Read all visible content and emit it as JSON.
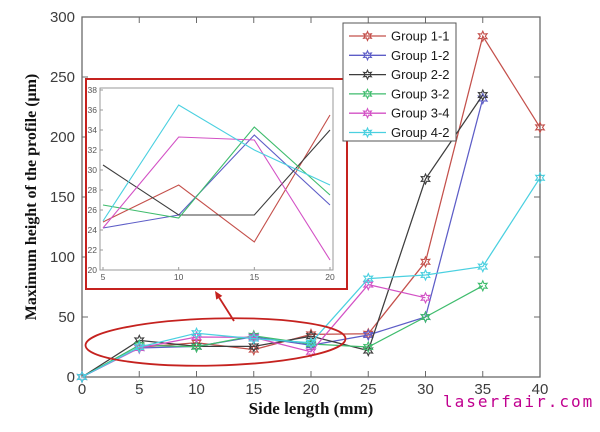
{
  "watermark": {
    "text": "laserfair.com",
    "color": "#c0008f"
  },
  "chart_data": {
    "type": "line",
    "title": "",
    "xlabel": "Side length (mm)",
    "ylabel": "Maximum height of the profile (μm)",
    "xlim": [
      0,
      40
    ],
    "ylim": [
      0,
      300
    ],
    "xticks": [
      0,
      5,
      10,
      15,
      20,
      25,
      30,
      35,
      40
    ],
    "yticks": [
      0,
      50,
      100,
      150,
      200,
      250,
      300
    ],
    "grid": false,
    "legend_position": "top-right",
    "marker": "hexagram",
    "x": [
      0,
      5,
      10,
      15,
      20,
      25,
      30,
      35,
      40
    ],
    "series": [
      {
        "name": "Group 1-1",
        "color": "#c4504b",
        "values": [
          0,
          24.8,
          28.5,
          22.8,
          35.5,
          36,
          96,
          284,
          208
        ]
      },
      {
        "name": "Group 1-2",
        "color": "#5d5dc7",
        "values": [
          0,
          24.2,
          25.5,
          33.5,
          26.5,
          35,
          50,
          232
        ]
      },
      {
        "name": "Group 2-2",
        "color": "#3d3d3d",
        "values": [
          0,
          30.5,
          25.5,
          25.5,
          34,
          22,
          165,
          235
        ]
      },
      {
        "name": "Group 3-2",
        "color": "#3fbc6d",
        "values": [
          0,
          26.5,
          25.2,
          34.3,
          27.5,
          25,
          50,
          76
        ]
      },
      {
        "name": "Group 3-4",
        "color": "#d351c5",
        "values": [
          0,
          24.2,
          33.3,
          33,
          21,
          77,
          66
        ]
      },
      {
        "name": "Group 4-2",
        "color": "#4ad0e0",
        "values": [
          0,
          24.9,
          36.5,
          32,
          28.5,
          82,
          85,
          92,
          166
        ]
      }
    ],
    "inset": {
      "xlim": [
        5,
        20
      ],
      "ylim": [
        20,
        38
      ],
      "xticks": [
        5,
        10,
        15,
        20
      ],
      "yticks": [
        20,
        22,
        24,
        26,
        28,
        30,
        32,
        34,
        36,
        38
      ],
      "x": [
        5,
        10,
        15,
        20
      ],
      "shows": "same six series magnified over side lengths 5-20 mm"
    },
    "annotation_color": "#c5221f"
  }
}
